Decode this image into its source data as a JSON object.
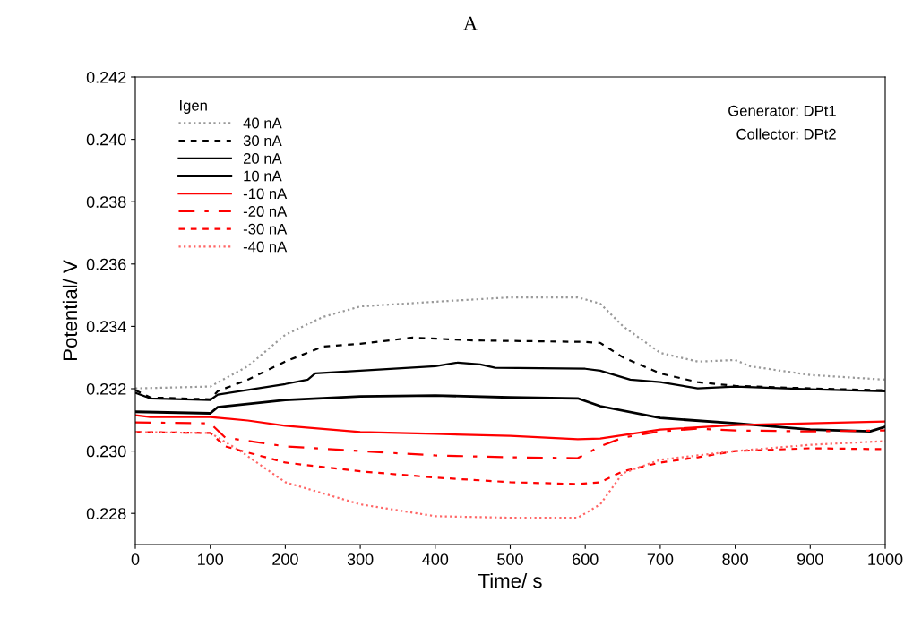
{
  "chart_data": {
    "type": "line",
    "title": "A",
    "xlabel": "Time/ s",
    "ylabel": "Potential/ V",
    "xlim": [
      0,
      1000
    ],
    "ylim": [
      0.227,
      0.242
    ],
    "xticks": [
      0,
      100,
      200,
      300,
      400,
      500,
      600,
      700,
      800,
      900,
      1000
    ],
    "yticks": [
      {
        "value": 0.228,
        "label": "0.228"
      },
      {
        "value": 0.23,
        "label": "0.230"
      },
      {
        "value": 0.232,
        "label": "0.232"
      },
      {
        "value": 0.234,
        "label": "0.234"
      },
      {
        "value": 0.236,
        "label": "0.236"
      },
      {
        "value": 0.238,
        "label": "0.238"
      },
      {
        "value": 0.24,
        "label": "0.240"
      },
      {
        "value": 0.242,
        "label": "0.242"
      }
    ],
    "grid": false,
    "legend": "top left",
    "legend_title": "Igen",
    "annotations": [
      "Generator: DPt1",
      "Collector: DPt2"
    ],
    "series": [
      {
        "name": "40 nA",
        "color": "#999999",
        "line_style": "dotted",
        "x": [
          0,
          100,
          150,
          200,
          250,
          300,
          400,
          500,
          590,
          620,
          650,
          700,
          750,
          800,
          820,
          900,
          1000
        ],
        "values": [
          0.23201,
          0.23207,
          0.23272,
          0.23373,
          0.2343,
          0.23464,
          0.23479,
          0.23493,
          0.23493,
          0.23473,
          0.23401,
          0.23315,
          0.23287,
          0.23292,
          0.23272,
          0.23244,
          0.23229
        ]
      },
      {
        "name": "30 nA",
        "color": "#000000",
        "line_style": "dashed",
        "x": [
          0,
          20,
          100,
          110,
          150,
          200,
          250,
          300,
          370,
          450,
          600,
          620,
          650,
          700,
          750,
          800,
          900,
          1000
        ],
        "values": [
          0.23195,
          0.23172,
          0.23166,
          0.23192,
          0.23229,
          0.23287,
          0.23335,
          0.23344,
          0.23364,
          0.23355,
          0.2335,
          0.23347,
          0.23301,
          0.23249,
          0.23221,
          0.23209,
          0.23201,
          0.23195
        ]
      },
      {
        "name": "20 nA",
        "color": "#000000",
        "line_style": "solid",
        "x": [
          0,
          20,
          100,
          110,
          200,
          230,
          240,
          300,
          400,
          430,
          460,
          480,
          600,
          620,
          660,
          700,
          750,
          800,
          900,
          1000
        ],
        "values": [
          0.23187,
          0.23169,
          0.23164,
          0.23181,
          0.23215,
          0.23229,
          0.23249,
          0.23258,
          0.23272,
          0.23284,
          0.23278,
          0.23267,
          0.23264,
          0.23258,
          0.23229,
          0.23221,
          0.23201,
          0.23207,
          0.23198,
          0.23192
        ]
      },
      {
        "name": "10 nA",
        "color": "#000000",
        "line_style": "solid",
        "x": [
          0,
          100,
          110,
          200,
          300,
          400,
          500,
          590,
          620,
          700,
          800,
          900,
          980,
          1000
        ],
        "values": [
          0.23126,
          0.23121,
          0.23141,
          0.23164,
          0.23175,
          0.23178,
          0.23172,
          0.23169,
          0.23144,
          0.23106,
          0.23089,
          0.23069,
          0.23063,
          0.23078
        ]
      },
      {
        "name": "-10 nA",
        "color": "#ff0000",
        "line_style": "solid",
        "x": [
          0,
          20,
          100,
          150,
          200,
          300,
          400,
          500,
          590,
          620,
          700,
          800,
          900,
          1000
        ],
        "values": [
          0.23115,
          0.23109,
          0.23109,
          0.23098,
          0.23081,
          0.23061,
          0.23055,
          0.23049,
          0.23038,
          0.2304,
          0.23069,
          0.23083,
          0.23089,
          0.23095
        ]
      },
      {
        "name": "-20 nA",
        "color": "#ff0000",
        "line_style": "dashdot",
        "x": [
          0,
          100,
          120,
          200,
          300,
          400,
          500,
          590,
          620,
          650,
          700,
          750,
          800,
          900,
          1000
        ],
        "values": [
          0.23092,
          0.23089,
          0.23043,
          0.23015,
          0.23,
          0.22986,
          0.2298,
          0.22977,
          0.23015,
          0.23043,
          0.23063,
          0.23072,
          0.23066,
          0.23063,
          0.23066
        ]
      },
      {
        "name": "-30 nA",
        "color": "#ff0000",
        "line_style": "dashed",
        "x": [
          0,
          100,
          120,
          200,
          300,
          400,
          500,
          590,
          620,
          650,
          700,
          750,
          800,
          900,
          1000
        ],
        "values": [
          0.23061,
          0.23058,
          0.23015,
          0.22963,
          0.22935,
          0.22915,
          0.229,
          0.22894,
          0.229,
          0.22935,
          0.22963,
          0.2298,
          0.23,
          0.23009,
          0.23006
        ]
      },
      {
        "name": "-40 nA",
        "color": "#ff6666",
        "line_style": "dotted",
        "x": [
          0,
          100,
          140,
          200,
          300,
          400,
          500,
          590,
          620,
          650,
          700,
          750,
          800,
          900,
          1000
        ],
        "values": [
          0.23061,
          0.23058,
          0.23,
          0.229,
          0.22829,
          0.22791,
          0.22786,
          0.22786,
          0.22829,
          0.22929,
          0.22972,
          0.22986,
          0.23,
          0.2302,
          0.23032
        ]
      }
    ]
  }
}
